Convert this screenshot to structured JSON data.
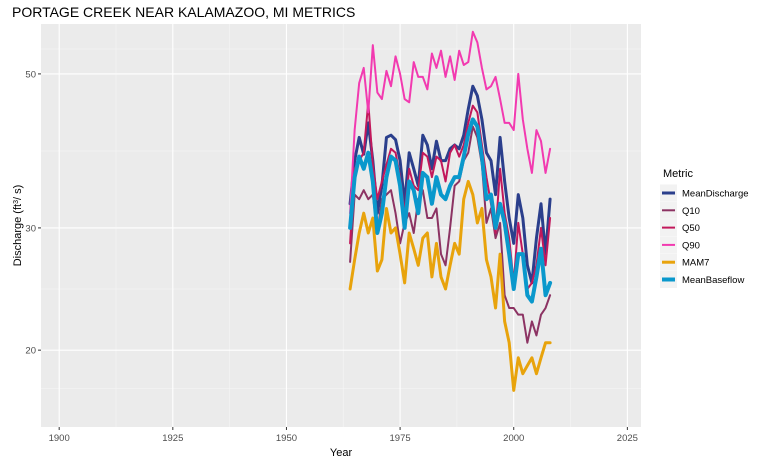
{
  "chart_data": {
    "type": "line",
    "title": "PORTAGE CREEK NEAR KALAMAZOO, MI  METRICS",
    "xlabel": "Year",
    "ylabel": "Discharge (ft³/s)",
    "ylabel_main": "Discharge (ft",
    "ylabel_sup": "3",
    "ylabel_tail": "/ s)",
    "xlim": [
      1896,
      2028
    ],
    "ylim": [
      15.5,
      59
    ],
    "y_scale": "log",
    "x_ticks": [
      1900,
      1925,
      1950,
      1975,
      2000,
      2025
    ],
    "x_tick_labels": [
      "1900",
      "1925",
      "1950",
      "1975",
      "2000",
      "2025"
    ],
    "y_ticks": [
      20,
      30,
      50
    ],
    "y_tick_labels": [
      "20",
      "30",
      "50"
    ],
    "grid": true,
    "legend": {
      "title": "Metric",
      "position": "right"
    },
    "x": [
      1964,
      1965,
      1966,
      1967,
      1968,
      1969,
      1970,
      1971,
      1972,
      1973,
      1974,
      1975,
      1976,
      1977,
      1978,
      1979,
      1980,
      1981,
      1982,
      1983,
      1984,
      1985,
      1986,
      1987,
      1988,
      1989,
      1990,
      1991,
      1992,
      1993,
      1994,
      1995,
      1996,
      1997,
      1998,
      1999,
      2000,
      2001,
      2002,
      2003,
      2004,
      2005,
      2006,
      2007,
      2008
    ],
    "series": [
      {
        "name": "MeanDischarge",
        "color": "#2b3f8c",
        "width": 3,
        "values": [
          32.5,
          37.5,
          40.5,
          38.3,
          42.5,
          37.5,
          31.5,
          34.5,
          40.5,
          40.8,
          40.2,
          37.5,
          32.5,
          38.5,
          36.5,
          34.5,
          40.8,
          39.5,
          36.5,
          40.0,
          37.5,
          37.5,
          39.0,
          39.5,
          39.0,
          40.8,
          44.5,
          48.0,
          46.5,
          43.0,
          38.5,
          37.5,
          33.5,
          40.5,
          35.0,
          31.0,
          28.5,
          33.5,
          31.0,
          26.5,
          25.0,
          29.0,
          32.5,
          27.5,
          33.0
        ]
      },
      {
        "name": "Q10",
        "color": "#8c3363",
        "width": 2,
        "values": [
          26.8,
          33.5,
          33.0,
          34.0,
          33.0,
          33.5,
          29.5,
          33.0,
          33.5,
          34.0,
          31.5,
          28.5,
          30.5,
          31.5,
          29.5,
          33.0,
          34.0,
          31.0,
          31.0,
          32.0,
          27.5,
          26.5,
          30.0,
          34.5,
          35.0,
          37.5,
          38.5,
          42.0,
          40.5,
          37.0,
          30.5,
          32.0,
          29.0,
          30.5,
          24.0,
          23.0,
          23.0,
          22.5,
          22.5,
          20.5,
          22.0,
          21.0,
          22.5,
          23.0,
          24.0
        ]
      },
      {
        "name": "Q50",
        "color": "#c2185b",
        "width": 2,
        "values": [
          28.5,
          36.5,
          37.5,
          38.5,
          45.5,
          37.0,
          33.0,
          35.0,
          37.0,
          39.0,
          38.5,
          35.5,
          31.5,
          36.5,
          34.5,
          34.0,
          38.5,
          38.0,
          35.5,
          38.0,
          37.5,
          35.0,
          38.5,
          39.5,
          38.0,
          39.5,
          42.5,
          45.0,
          44.0,
          39.5,
          35.5,
          32.5,
          29.5,
          36.5,
          31.5,
          29.0,
          25.0,
          30.5,
          27.5,
          24.5,
          25.0,
          26.5,
          30.0,
          26.5,
          31.0
        ]
      },
      {
        "name": "Q90",
        "color": "#f23ab0",
        "width": 2,
        "values": [
          31.5,
          41.5,
          48.5,
          51.0,
          44.0,
          55.0,
          47.0,
          46.0,
          50.5,
          48.0,
          53.0,
          50.0,
          46.0,
          45.5,
          52.0,
          49.5,
          49.5,
          47.5,
          53.5,
          51.0,
          54.0,
          49.5,
          53.0,
          49.0,
          54.0,
          51.5,
          52.0,
          57.5,
          55.5,
          51.0,
          47.5,
          48.0,
          49.5,
          46.0,
          42.5,
          42.5,
          41.5,
          50.0,
          43.0,
          39.0,
          36.0,
          41.5,
          40.0,
          36.0,
          39.0
        ]
      },
      {
        "name": "MAM7",
        "color": "#e8a30c",
        "width": 3,
        "values": [
          24.5,
          27.0,
          29.5,
          31.5,
          29.5,
          31.0,
          26.0,
          27.0,
          32.0,
          29.5,
          30.0,
          27.5,
          25.0,
          29.5,
          28.0,
          26.5,
          29.0,
          29.5,
          25.5,
          28.5,
          25.5,
          24.5,
          26.5,
          28.5,
          27.5,
          33.0,
          35.0,
          33.5,
          30.5,
          32.0,
          27.0,
          25.5,
          23.0,
          27.5,
          22.0,
          20.5,
          17.5,
          19.5,
          18.5,
          19.0,
          19.5,
          18.5,
          19.5,
          20.5,
          20.5
        ]
      },
      {
        "name": "MeanBaseflow",
        "color": "#0a98cc",
        "width": 4,
        "values": [
          30.0,
          35.5,
          38.0,
          36.5,
          38.5,
          35.0,
          29.5,
          31.5,
          35.5,
          38.0,
          37.5,
          34.5,
          30.0,
          35.0,
          34.0,
          31.5,
          36.0,
          35.5,
          32.5,
          35.5,
          33.5,
          33.0,
          34.5,
          35.5,
          35.5,
          38.0,
          41.0,
          43.0,
          42.0,
          38.0,
          33.0,
          33.5,
          30.0,
          32.5,
          30.5,
          27.5,
          24.5,
          27.5,
          27.5,
          24.0,
          23.5,
          25.5,
          28.0,
          24.0,
          25.0
        ]
      }
    ]
  }
}
